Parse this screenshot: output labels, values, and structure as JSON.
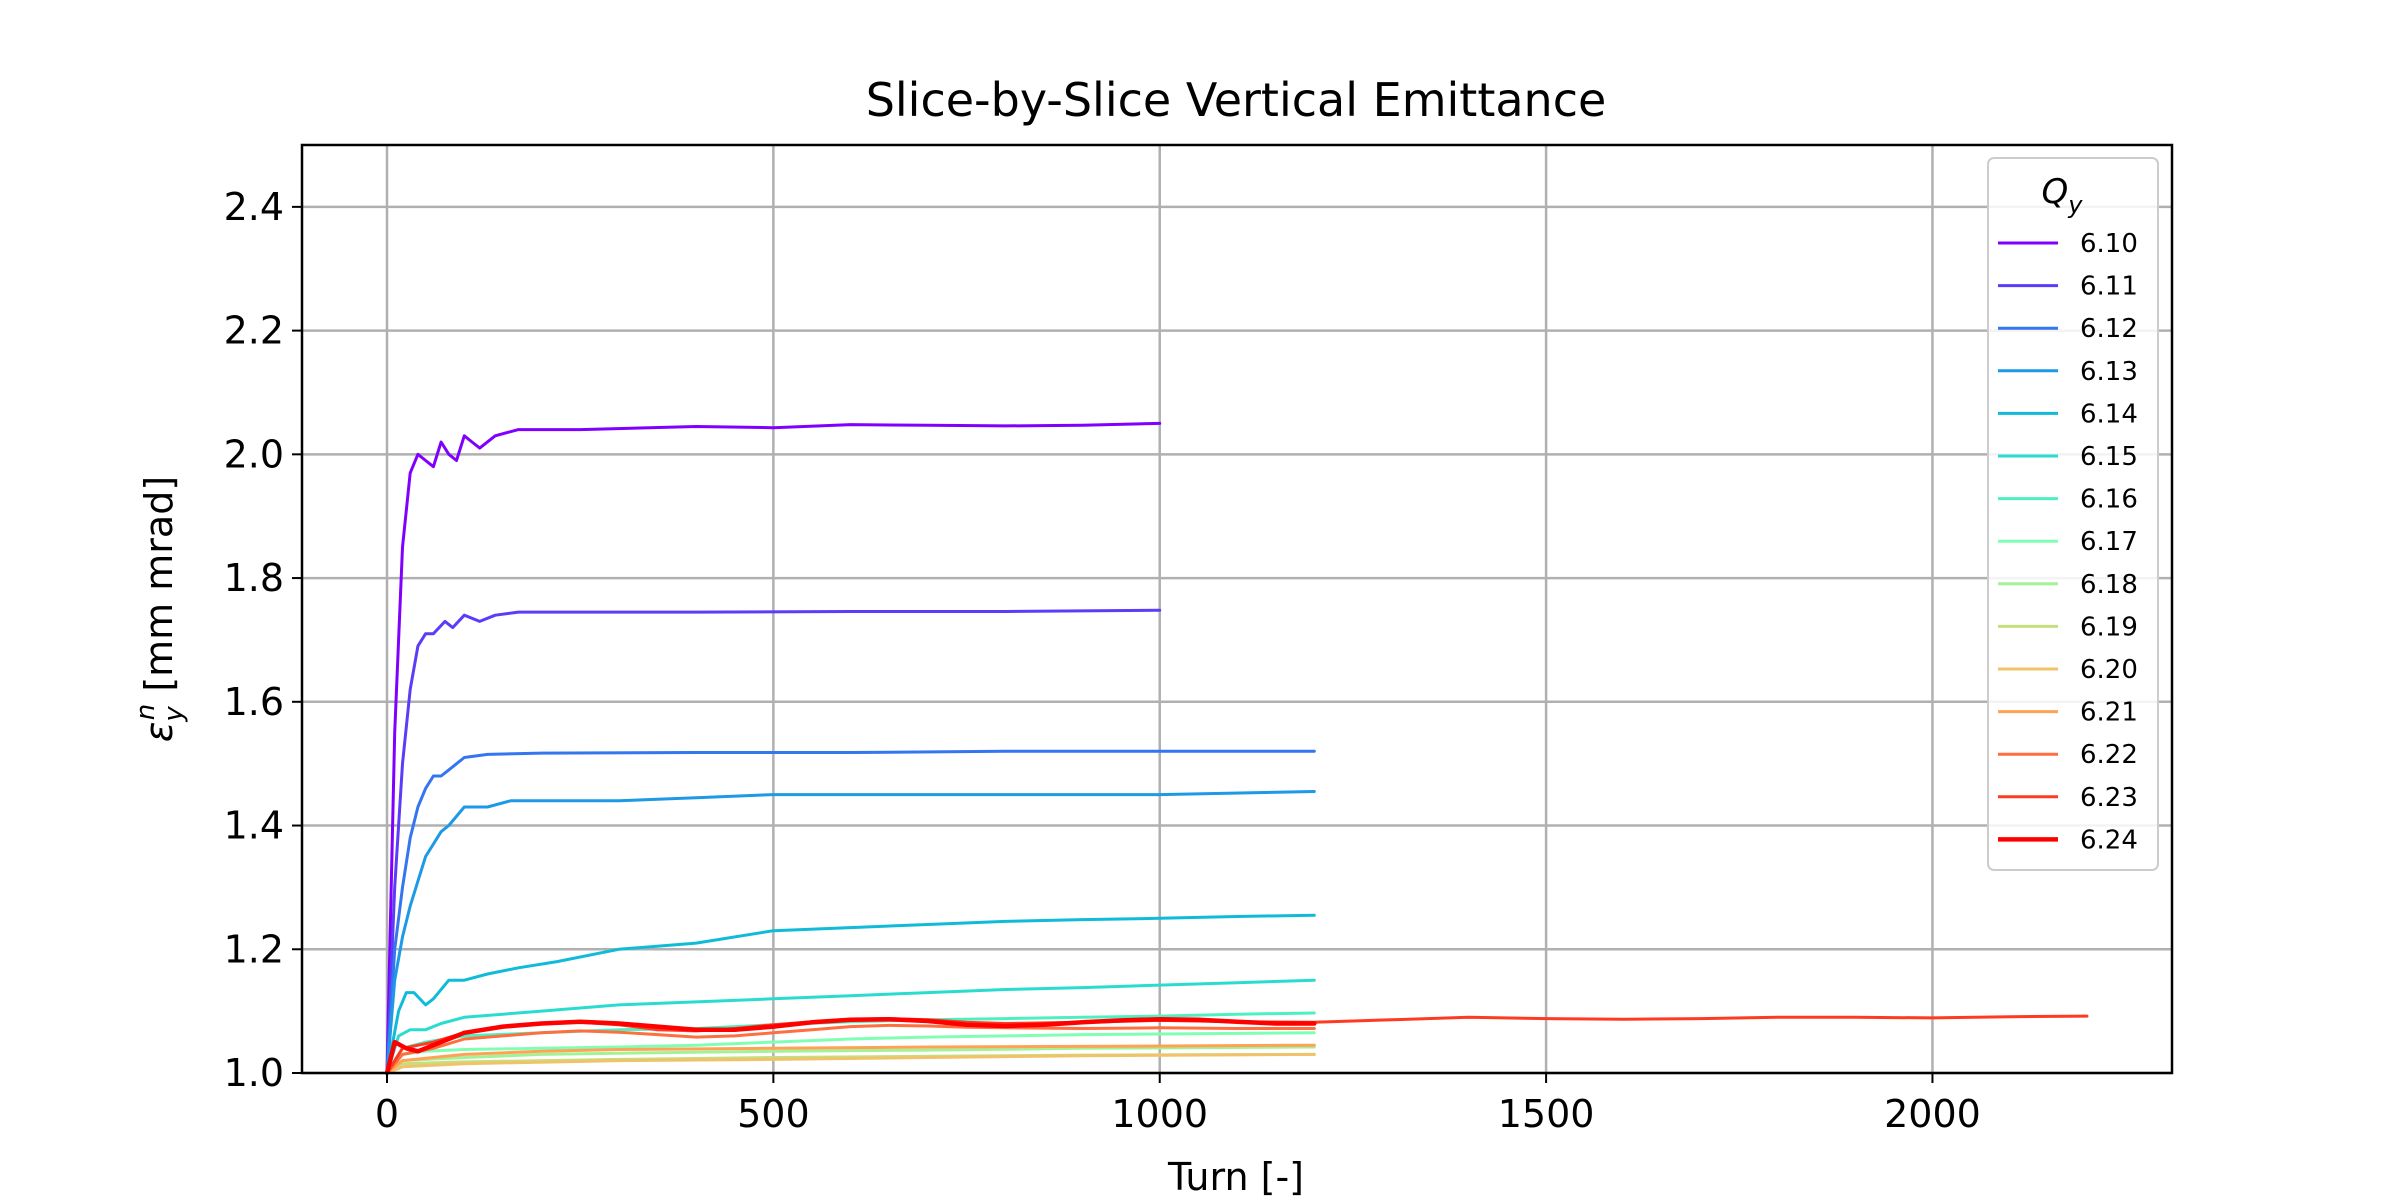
{
  "chart_data": {
    "type": "line",
    "title": "Slice-by-Slice Vertical Emittance",
    "xlabel": "Turn [-]",
    "ylabel": "ε",
    "ylabel_sub": "y",
    "ylabel_sup": "n",
    "ylabel_rest": " [mm mrad]",
    "xlim": [
      -110,
      2310
    ],
    "ylim": [
      1.0,
      2.5
    ],
    "xticks": [
      0,
      500,
      1000,
      1500,
      2000
    ],
    "xtick_labels": [
      "0",
      "500",
      "1000",
      "1500",
      "2000"
    ],
    "yticks": [
      1.0,
      1.2,
      1.4,
      1.6,
      1.8,
      2.0,
      2.2,
      2.4
    ],
    "ytick_labels": [
      "1.0",
      "1.2",
      "1.4",
      "1.6",
      "1.8",
      "2.0",
      "2.2",
      "2.4"
    ],
    "grid": true,
    "legend": {
      "title": "Q",
      "title_sub": "y",
      "placement": "top-right"
    },
    "series": [
      {
        "name": "6.10",
        "color": "#8000ff",
        "width": 3,
        "points": [
          [
            0,
            1.0
          ],
          [
            10,
            1.55
          ],
          [
            20,
            1.85
          ],
          [
            30,
            1.97
          ],
          [
            40,
            2.0
          ],
          [
            50,
            1.99
          ],
          [
            60,
            1.98
          ],
          [
            70,
            2.02
          ],
          [
            80,
            2.0
          ],
          [
            90,
            1.99
          ],
          [
            100,
            2.03
          ],
          [
            110,
            2.02
          ],
          [
            120,
            2.01
          ],
          [
            140,
            2.03
          ],
          [
            170,
            2.04
          ],
          [
            250,
            2.04
          ],
          [
            400,
            2.045
          ],
          [
            500,
            2.043
          ],
          [
            600,
            2.048
          ],
          [
            700,
            2.047
          ],
          [
            800,
            2.046
          ],
          [
            900,
            2.047
          ],
          [
            1000,
            2.05
          ]
        ]
      },
      {
        "name": "6.11",
        "color": "#5a3cf9",
        "width": 3,
        "points": [
          [
            0,
            1.0
          ],
          [
            10,
            1.3
          ],
          [
            20,
            1.5
          ],
          [
            30,
            1.62
          ],
          [
            40,
            1.69
          ],
          [
            50,
            1.71
          ],
          [
            60,
            1.71
          ],
          [
            75,
            1.73
          ],
          [
            85,
            1.72
          ],
          [
            100,
            1.74
          ],
          [
            120,
            1.73
          ],
          [
            140,
            1.74
          ],
          [
            170,
            1.745
          ],
          [
            250,
            1.745
          ],
          [
            400,
            1.745
          ],
          [
            600,
            1.746
          ],
          [
            800,
            1.746
          ],
          [
            1000,
            1.748
          ]
        ]
      },
      {
        "name": "6.12",
        "color": "#3475f0",
        "width": 3,
        "points": [
          [
            0,
            1.0
          ],
          [
            10,
            1.2
          ],
          [
            20,
            1.3
          ],
          [
            30,
            1.38
          ],
          [
            40,
            1.43
          ],
          [
            50,
            1.46
          ],
          [
            60,
            1.48
          ],
          [
            70,
            1.48
          ],
          [
            80,
            1.49
          ],
          [
            100,
            1.51
          ],
          [
            130,
            1.515
          ],
          [
            200,
            1.517
          ],
          [
            400,
            1.518
          ],
          [
            600,
            1.518
          ],
          [
            800,
            1.52
          ],
          [
            1000,
            1.52
          ],
          [
            1200,
            1.52
          ]
        ]
      },
      {
        "name": "6.13",
        "color": "#1e99e6",
        "width": 3,
        "points": [
          [
            0,
            1.0
          ],
          [
            10,
            1.15
          ],
          [
            20,
            1.22
          ],
          [
            30,
            1.27
          ],
          [
            40,
            1.31
          ],
          [
            50,
            1.35
          ],
          [
            60,
            1.37
          ],
          [
            70,
            1.39
          ],
          [
            80,
            1.4
          ],
          [
            100,
            1.43
          ],
          [
            130,
            1.43
          ],
          [
            160,
            1.44
          ],
          [
            200,
            1.44
          ],
          [
            300,
            1.44
          ],
          [
            400,
            1.445
          ],
          [
            500,
            1.45
          ],
          [
            700,
            1.45
          ],
          [
            1000,
            1.45
          ],
          [
            1200,
            1.455
          ]
        ]
      },
      {
        "name": "6.14",
        "color": "#0fbbd9",
        "width": 3,
        "points": [
          [
            0,
            1.0
          ],
          [
            15,
            1.1
          ],
          [
            25,
            1.13
          ],
          [
            35,
            1.13
          ],
          [
            50,
            1.11
          ],
          [
            60,
            1.12
          ],
          [
            80,
            1.15
          ],
          [
            100,
            1.15
          ],
          [
            130,
            1.16
          ],
          [
            170,
            1.17
          ],
          [
            220,
            1.18
          ],
          [
            300,
            1.2
          ],
          [
            400,
            1.21
          ],
          [
            500,
            1.23
          ],
          [
            600,
            1.235
          ],
          [
            700,
            1.24
          ],
          [
            800,
            1.245
          ],
          [
            900,
            1.248
          ],
          [
            1000,
            1.25
          ],
          [
            1100,
            1.253
          ],
          [
            1200,
            1.255
          ]
        ]
      },
      {
        "name": "6.15",
        "color": "#2adcd0",
        "width": 3,
        "points": [
          [
            0,
            1.0
          ],
          [
            15,
            1.06
          ],
          [
            30,
            1.07
          ],
          [
            50,
            1.07
          ],
          [
            70,
            1.08
          ],
          [
            100,
            1.09
          ],
          [
            150,
            1.095
          ],
          [
            200,
            1.1
          ],
          [
            300,
            1.11
          ],
          [
            400,
            1.115
          ],
          [
            500,
            1.12
          ],
          [
            600,
            1.125
          ],
          [
            700,
            1.13
          ],
          [
            800,
            1.135
          ],
          [
            900,
            1.138
          ],
          [
            1000,
            1.142
          ],
          [
            1100,
            1.146
          ],
          [
            1200,
            1.15
          ]
        ]
      },
      {
        "name": "6.16",
        "color": "#4df0c0",
        "width": 3,
        "points": [
          [
            0,
            1.0
          ],
          [
            20,
            1.04
          ],
          [
            50,
            1.05
          ],
          [
            100,
            1.06
          ],
          [
            200,
            1.065
          ],
          [
            300,
            1.07
          ],
          [
            400,
            1.072
          ],
          [
            500,
            1.078
          ],
          [
            600,
            1.083
          ],
          [
            700,
            1.086
          ],
          [
            800,
            1.088
          ],
          [
            900,
            1.09
          ],
          [
            1000,
            1.092
          ],
          [
            1100,
            1.095
          ],
          [
            1200,
            1.097
          ]
        ]
      },
      {
        "name": "6.17",
        "color": "#80ffb4",
        "width": 3,
        "points": [
          [
            0,
            1.0
          ],
          [
            20,
            1.03
          ],
          [
            50,
            1.035
          ],
          [
            100,
            1.038
          ],
          [
            200,
            1.04
          ],
          [
            300,
            1.042
          ],
          [
            400,
            1.045
          ],
          [
            500,
            1.05
          ],
          [
            600,
            1.055
          ],
          [
            700,
            1.058
          ],
          [
            800,
            1.06
          ],
          [
            900,
            1.062
          ],
          [
            1000,
            1.063
          ],
          [
            1200,
            1.065
          ]
        ]
      },
      {
        "name": "6.18",
        "color": "#a4f296",
        "width": 3,
        "points": [
          [
            0,
            1.0
          ],
          [
            20,
            1.02
          ],
          [
            100,
            1.025
          ],
          [
            200,
            1.03
          ],
          [
            300,
            1.032
          ],
          [
            500,
            1.035
          ],
          [
            700,
            1.037
          ],
          [
            900,
            1.04
          ],
          [
            1200,
            1.042
          ]
        ]
      },
      {
        "name": "6.19",
        "color": "#c6df7e",
        "width": 3,
        "points": [
          [
            0,
            1.0
          ],
          [
            20,
            1.015
          ],
          [
            100,
            1.018
          ],
          [
            300,
            1.022
          ],
          [
            500,
            1.025
          ],
          [
            700,
            1.027
          ],
          [
            900,
            1.029
          ],
          [
            1200,
            1.03
          ]
        ]
      },
      {
        "name": "6.20",
        "color": "#f0c36a",
        "width": 3,
        "points": [
          [
            0,
            1.0
          ],
          [
            20,
            1.01
          ],
          [
            100,
            1.015
          ],
          [
            300,
            1.02
          ],
          [
            500,
            1.022
          ],
          [
            700,
            1.025
          ],
          [
            900,
            1.028
          ],
          [
            1200,
            1.03
          ]
        ]
      },
      {
        "name": "6.21",
        "color": "#ffa256",
        "width": 3,
        "points": [
          [
            0,
            1.0
          ],
          [
            20,
            1.02
          ],
          [
            100,
            1.03
          ],
          [
            200,
            1.035
          ],
          [
            300,
            1.038
          ],
          [
            500,
            1.04
          ],
          [
            700,
            1.042
          ],
          [
            900,
            1.043
          ],
          [
            1200,
            1.045
          ]
        ]
      },
      {
        "name": "6.22",
        "color": "#ff6e3f",
        "width": 3,
        "points": [
          [
            0,
            1.0
          ],
          [
            20,
            1.03
          ],
          [
            60,
            1.04
          ],
          [
            100,
            1.055
          ],
          [
            150,
            1.06
          ],
          [
            200,
            1.065
          ],
          [
            250,
            1.068
          ],
          [
            300,
            1.066
          ],
          [
            350,
            1.062
          ],
          [
            400,
            1.058
          ],
          [
            450,
            1.06
          ],
          [
            500,
            1.065
          ],
          [
            550,
            1.07
          ],
          [
            600,
            1.075
          ],
          [
            650,
            1.077
          ],
          [
            700,
            1.076
          ],
          [
            750,
            1.074
          ],
          [
            800,
            1.073
          ],
          [
            900,
            1.072
          ],
          [
            1000,
            1.073
          ],
          [
            1100,
            1.072
          ],
          [
            1200,
            1.072
          ]
        ]
      },
      {
        "name": "6.23",
        "color": "#ff3a22",
        "width": 3,
        "points": [
          [
            0,
            1.0
          ],
          [
            20,
            1.04
          ],
          [
            60,
            1.05
          ],
          [
            100,
            1.065
          ],
          [
            150,
            1.075
          ],
          [
            200,
            1.08
          ],
          [
            250,
            1.082
          ],
          [
            300,
            1.078
          ],
          [
            350,
            1.07
          ],
          [
            400,
            1.068
          ],
          [
            450,
            1.072
          ],
          [
            500,
            1.078
          ],
          [
            550,
            1.083
          ],
          [
            600,
            1.087
          ],
          [
            650,
            1.088
          ],
          [
            700,
            1.086
          ],
          [
            750,
            1.082
          ],
          [
            800,
            1.08
          ],
          [
            900,
            1.082
          ],
          [
            1000,
            1.085
          ],
          [
            1100,
            1.083
          ],
          [
            1200,
            1.082
          ],
          [
            1300,
            1.086
          ],
          [
            1400,
            1.09
          ],
          [
            1500,
            1.088
          ],
          [
            1600,
            1.087
          ],
          [
            1700,
            1.088
          ],
          [
            1800,
            1.09
          ],
          [
            1900,
            1.09
          ],
          [
            2000,
            1.089
          ],
          [
            2100,
            1.091
          ],
          [
            2200,
            1.092
          ]
        ]
      },
      {
        "name": "6.24",
        "color": "#ff0000",
        "width": 4.5,
        "points": [
          [
            0,
            1.0
          ],
          [
            10,
            1.05
          ],
          [
            25,
            1.04
          ],
          [
            40,
            1.035
          ],
          [
            60,
            1.045
          ],
          [
            100,
            1.065
          ],
          [
            150,
            1.075
          ],
          [
            200,
            1.08
          ],
          [
            250,
            1.083
          ],
          [
            300,
            1.08
          ],
          [
            350,
            1.075
          ],
          [
            400,
            1.07
          ],
          [
            450,
            1.07
          ],
          [
            500,
            1.075
          ],
          [
            550,
            1.082
          ],
          [
            600,
            1.086
          ],
          [
            650,
            1.087
          ],
          [
            700,
            1.084
          ],
          [
            750,
            1.078
          ],
          [
            800,
            1.076
          ],
          [
            850,
            1.078
          ],
          [
            900,
            1.082
          ],
          [
            950,
            1.085
          ],
          [
            1000,
            1.087
          ],
          [
            1050,
            1.086
          ],
          [
            1100,
            1.083
          ],
          [
            1150,
            1.08
          ],
          [
            1200,
            1.08
          ]
        ]
      }
    ]
  }
}
